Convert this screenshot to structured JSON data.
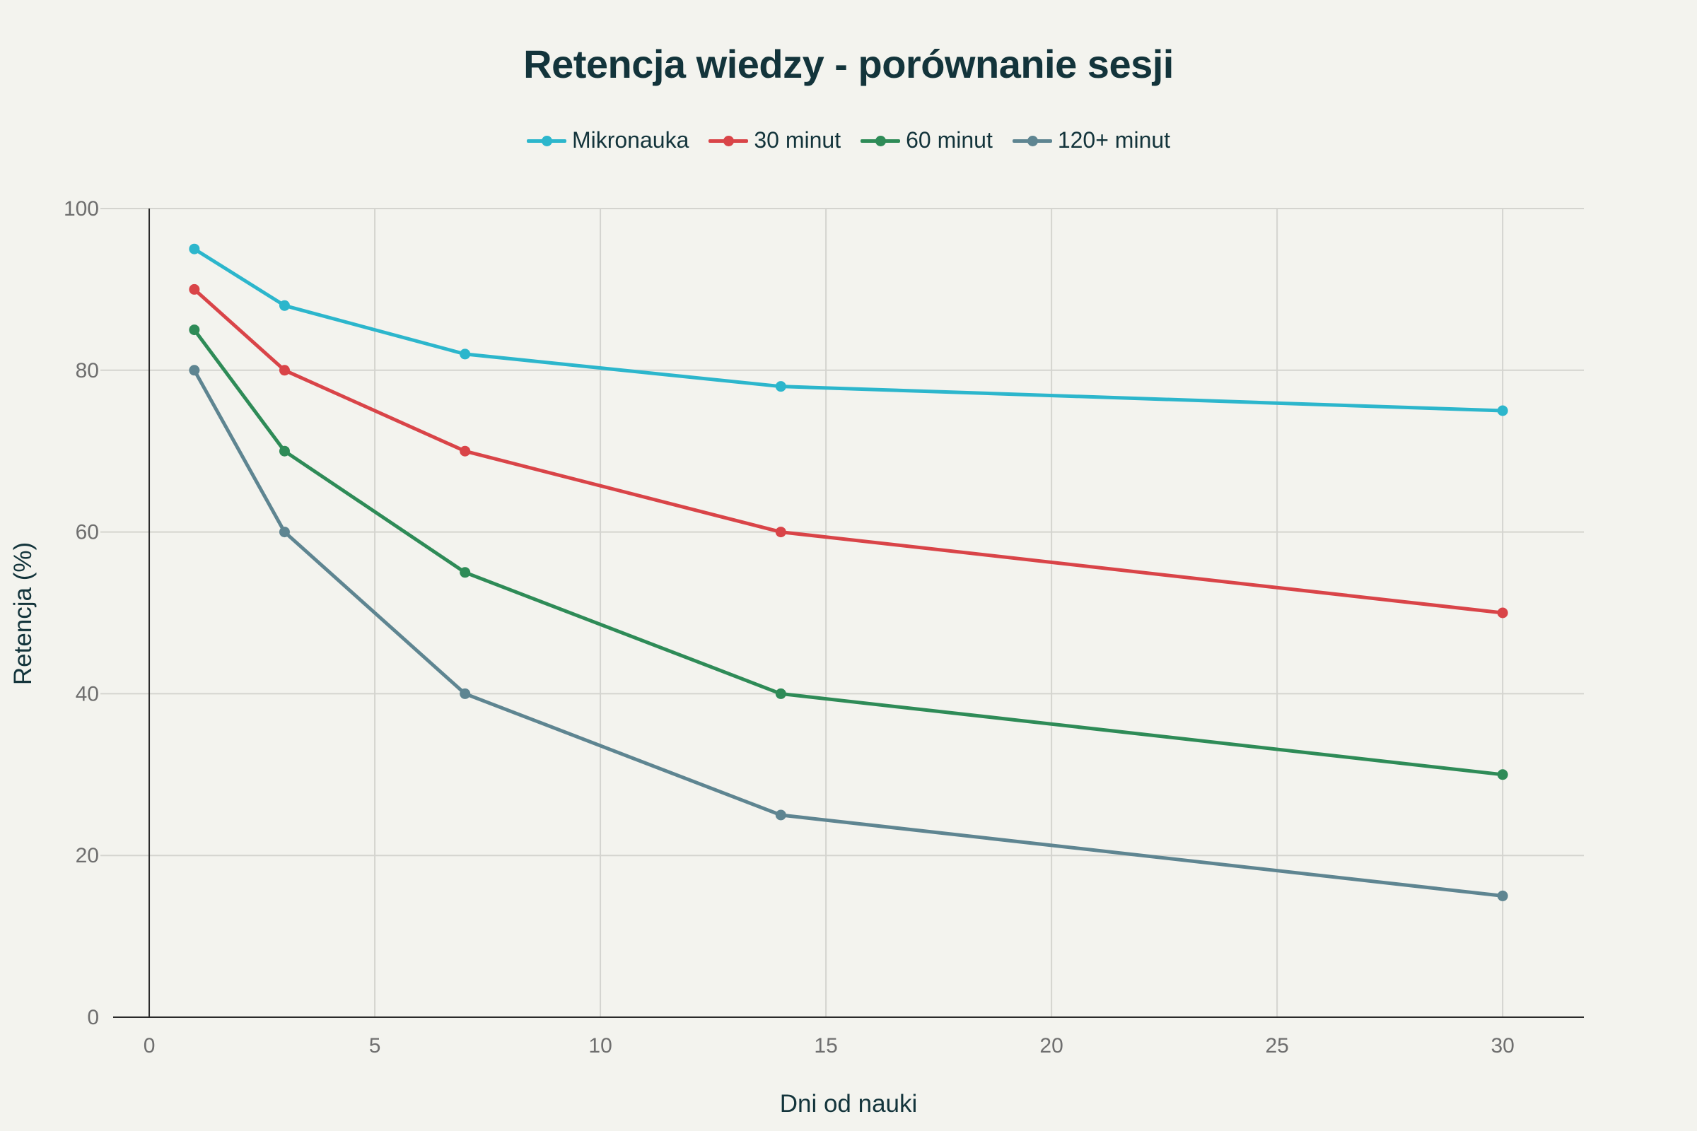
{
  "chart_data": {
    "type": "line",
    "title": "Retencja wiedzy - porównanie sesji",
    "xlabel": "Dni od nauki",
    "ylabel": "Retencja (%)",
    "x": [
      1,
      3,
      7,
      14,
      30
    ],
    "xlim": [
      -0.8,
      31.8
    ],
    "ylim": [
      0,
      100
    ],
    "xticks": [
      0,
      5,
      10,
      15,
      20,
      25,
      30
    ],
    "yticks": [
      0,
      20,
      40,
      60,
      80,
      100
    ],
    "grid": true,
    "legend_position": "top-center",
    "series": [
      {
        "name": "Mikronauka",
        "color": "#2cb6cc",
        "values": [
          95,
          88,
          82,
          78,
          75
        ]
      },
      {
        "name": "30 minut",
        "color": "#d94448",
        "values": [
          90,
          80,
          70,
          60,
          50
        ]
      },
      {
        "name": "60 minut",
        "color": "#2e8b57",
        "values": [
          85,
          70,
          55,
          40,
          30
        ]
      },
      {
        "name": "120+ minut",
        "color": "#5e8591",
        "values": [
          80,
          60,
          40,
          25,
          15
        ]
      }
    ]
  }
}
